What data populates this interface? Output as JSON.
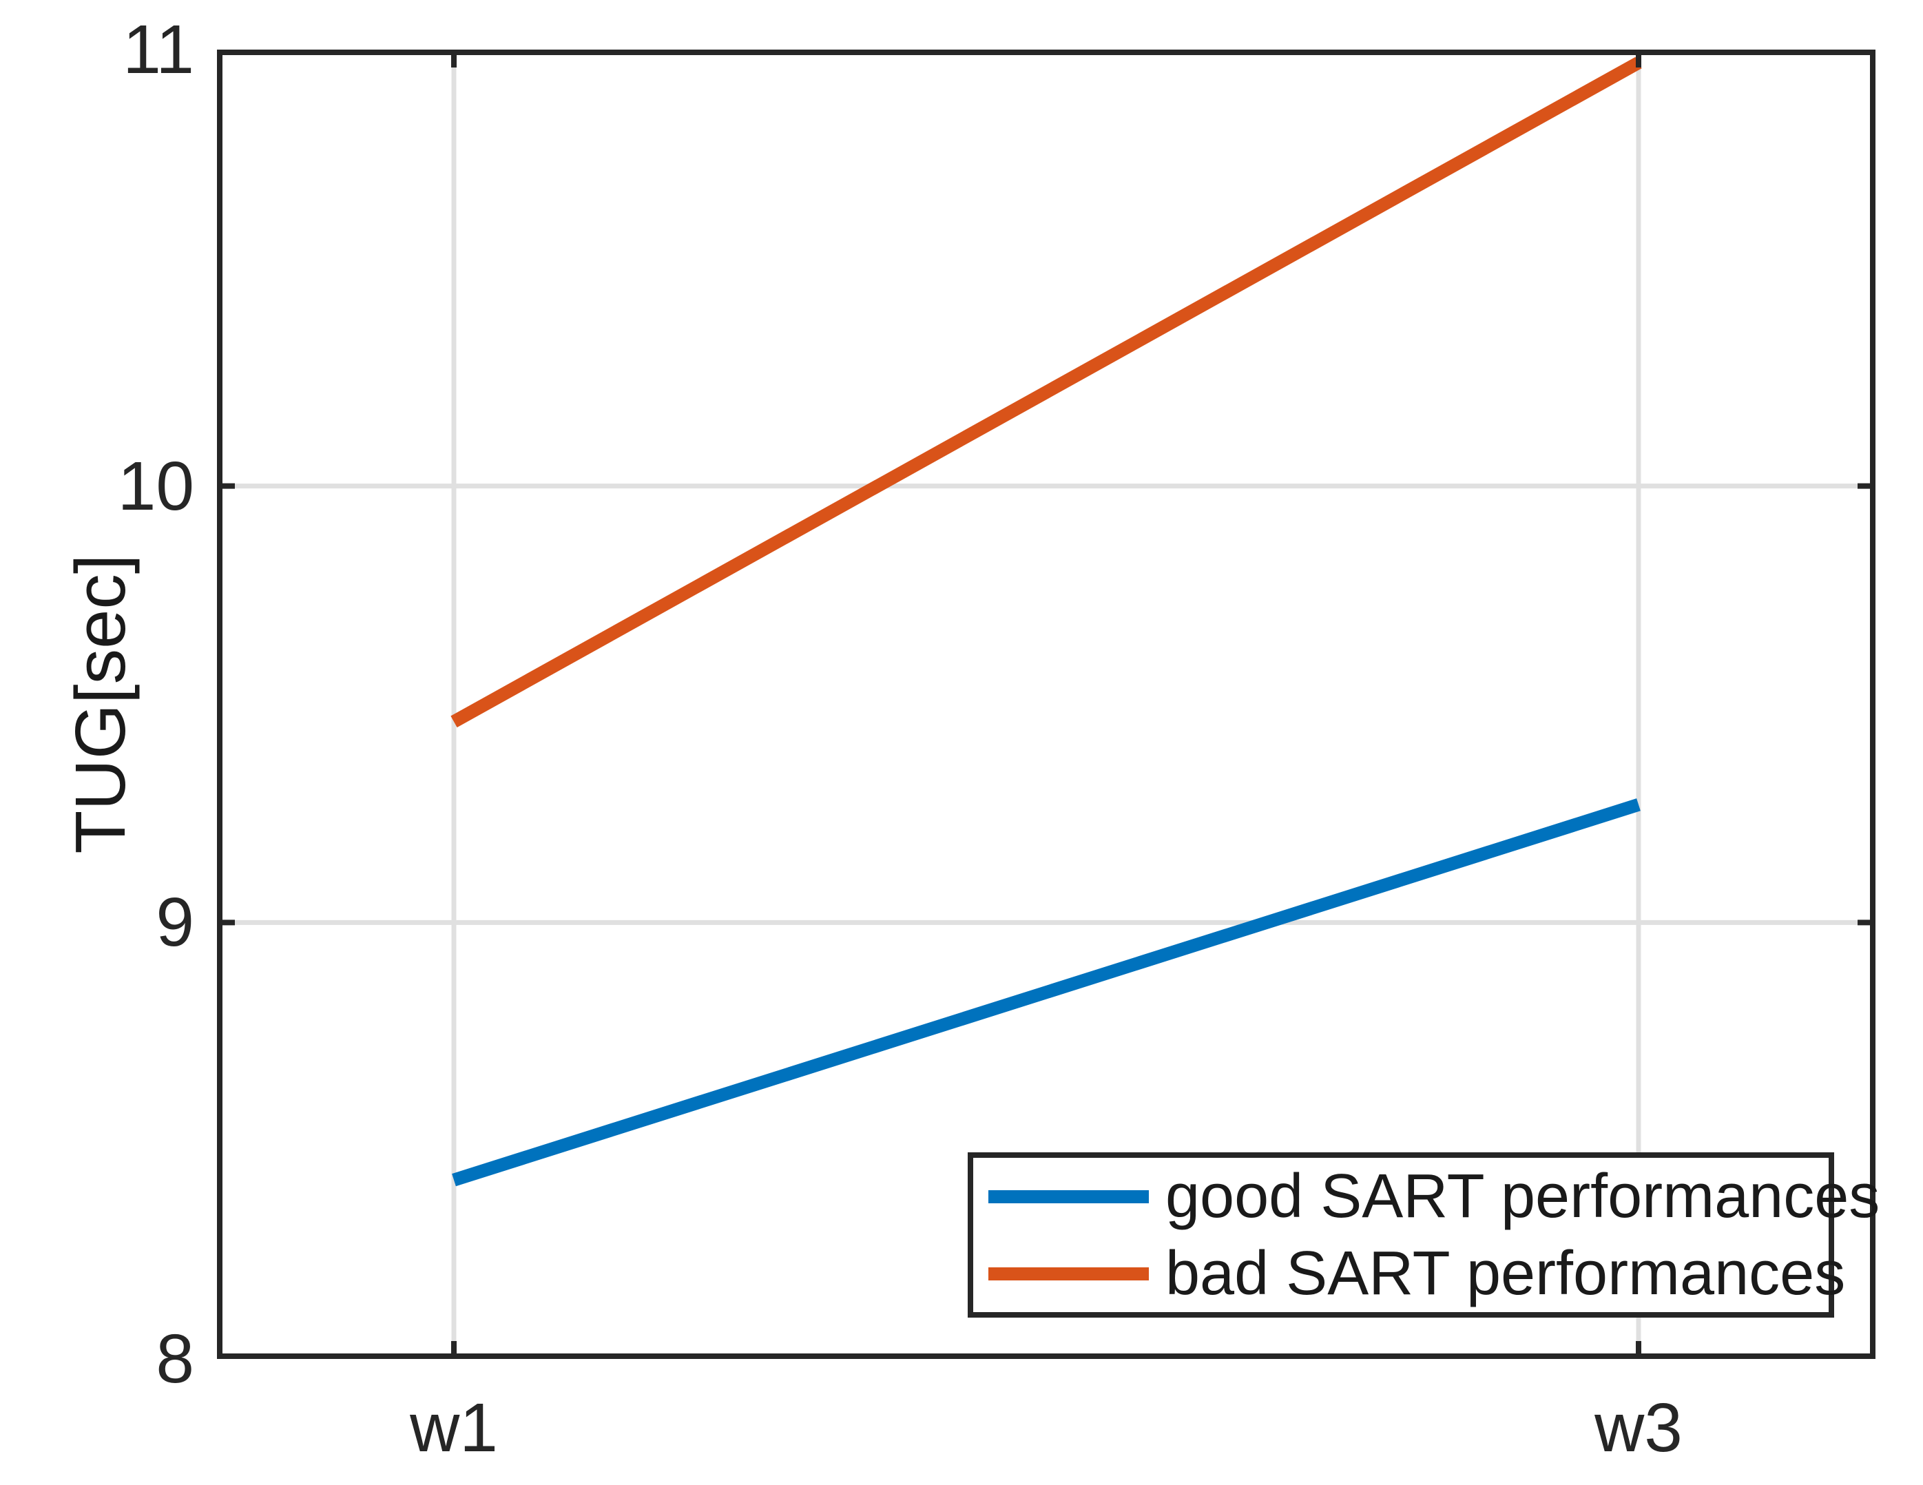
{
  "chart_data": {
    "type": "line",
    "title": "",
    "xlabel": "",
    "ylabel": "TUG[sec]",
    "x_categories": [
      "w1",
      "w3"
    ],
    "x_values": [
      1,
      3
    ],
    "xlim": [
      0.6,
      3.4
    ],
    "ylim": [
      8,
      11
    ],
    "yticks": [
      8,
      9,
      10,
      11
    ],
    "grid": true,
    "legend_position": "south-east",
    "series": [
      {
        "name": "good SART performances",
        "color": "#0072BD",
        "values": [
          8.41,
          9.27
        ]
      },
      {
        "name": "bad SART performances",
        "color": "#D95319",
        "values": [
          9.46,
          10.97
        ]
      }
    ]
  },
  "colors": {
    "axis": "#262626",
    "tick_label": "#262626",
    "grid": "#E0E0E0",
    "background": "#FFFFFF"
  }
}
